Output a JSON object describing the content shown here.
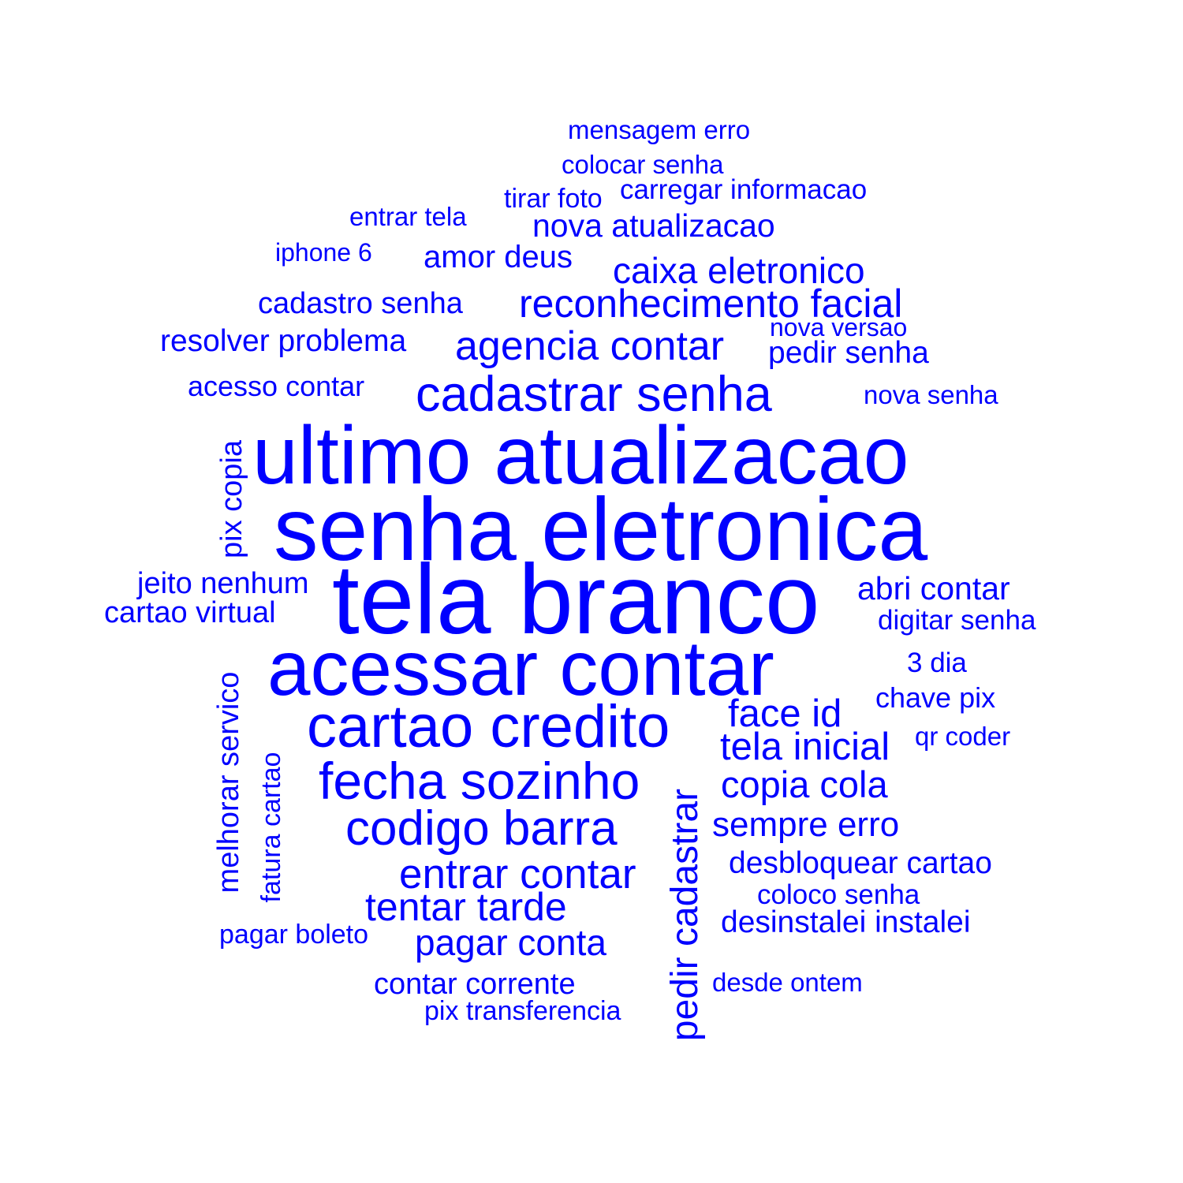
{
  "color": "#0000ff",
  "words": [
    {
      "id": "mensagem-erro",
      "text": "mensagem erro"
    },
    {
      "id": "colocar-senha",
      "text": "colocar senha"
    },
    {
      "id": "tirar-foto",
      "text": "tirar foto"
    },
    {
      "id": "carregar-informacao",
      "text": "carregar informacao"
    },
    {
      "id": "entrar-tela",
      "text": "entrar tela"
    },
    {
      "id": "nova-atualizacao",
      "text": "nova atualizacao"
    },
    {
      "id": "iphone-6",
      "text": "iphone 6"
    },
    {
      "id": "amor-deus",
      "text": "amor deus"
    },
    {
      "id": "caixa-eletronico",
      "text": "caixa eletronico"
    },
    {
      "id": "cadastro-senha",
      "text": "cadastro senha"
    },
    {
      "id": "reconhecimento-facial",
      "text": "reconhecimento facial"
    },
    {
      "id": "nova-versao",
      "text": "nova versao"
    },
    {
      "id": "resolver-problema",
      "text": "resolver problema"
    },
    {
      "id": "agencia-contar",
      "text": "agencia contar"
    },
    {
      "id": "pedir-senha",
      "text": "pedir senha"
    },
    {
      "id": "acesso-contar",
      "text": "acesso contar"
    },
    {
      "id": "cadastrar-senha",
      "text": "cadastrar senha"
    },
    {
      "id": "nova-senha",
      "text": "nova senha"
    },
    {
      "id": "pix-copia",
      "text": "pix copia"
    },
    {
      "id": "ultimo-atualizacao",
      "text": "ultimo atualizacao"
    },
    {
      "id": "senha-eletronica",
      "text": "senha eletronica"
    },
    {
      "id": "jeito-nenhum",
      "text": "jeito nenhum"
    },
    {
      "id": "tela-branco",
      "text": "tela branco"
    },
    {
      "id": "abri-contar",
      "text": "abri contar"
    },
    {
      "id": "cartao-virtual",
      "text": "cartao virtual"
    },
    {
      "id": "digitar-senha",
      "text": "digitar senha"
    },
    {
      "id": "acessar-contar",
      "text": "acessar contar"
    },
    {
      "id": "3-dia",
      "text": "3 dia"
    },
    {
      "id": "melhorar-servico",
      "text": "melhorar servico"
    },
    {
      "id": "chave-pix",
      "text": "chave pix"
    },
    {
      "id": "face-id",
      "text": "face id"
    },
    {
      "id": "cartao-credito",
      "text": "cartao credito"
    },
    {
      "id": "qr-coder",
      "text": "qr coder"
    },
    {
      "id": "tela-inicial",
      "text": "tela inicial"
    },
    {
      "id": "fatura-cartao",
      "text": "fatura cartao"
    },
    {
      "id": "fecha-sozinho",
      "text": "fecha sozinho"
    },
    {
      "id": "copia-cola",
      "text": "copia cola"
    },
    {
      "id": "pedir-cadastrar",
      "text": "pedir cadastrar"
    },
    {
      "id": "codigo-barra",
      "text": "codigo barra"
    },
    {
      "id": "sempre-erro",
      "text": "sempre erro"
    },
    {
      "id": "entrar-contar",
      "text": "entrar contar"
    },
    {
      "id": "desbloquear-cartao",
      "text": "desbloquear cartao"
    },
    {
      "id": "tentar-tarde",
      "text": "tentar tarde"
    },
    {
      "id": "coloco-senha",
      "text": "coloco senha"
    },
    {
      "id": "desinstalei-instalei",
      "text": "desinstalei instalei"
    },
    {
      "id": "pagar-boleto",
      "text": "pagar boleto"
    },
    {
      "id": "pagar-conta",
      "text": "pagar conta"
    },
    {
      "id": "contar-corrente",
      "text": "contar corrente"
    },
    {
      "id": "desde-ontem",
      "text": "desde ontem"
    },
    {
      "id": "pix-transferencia",
      "text": "pix transferencia"
    }
  ]
}
